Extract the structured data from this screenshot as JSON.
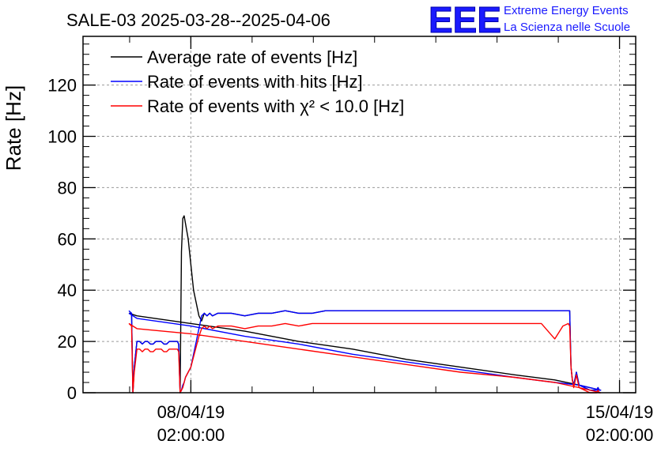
{
  "chart_data": {
    "type": "line",
    "title": "SALE-03 2025-03-28--2025-04-06",
    "xlabel": "",
    "ylabel": "Rate [Hz]",
    "xlim": [
      0,
      205
    ],
    "ylim": [
      0,
      139
    ],
    "yticks": [
      0,
      20,
      40,
      60,
      80,
      100,
      120
    ],
    "xticks": [
      {
        "x": 40,
        "date": "08/04/19",
        "time": "02:00:00"
      },
      {
        "x": 199,
        "date": "15/04/19",
        "time": "02:00:00"
      }
    ],
    "grid": true,
    "legend_position": "top-left",
    "series": [
      {
        "name": "Average rate of events [Hz]",
        "color": "#000000",
        "x": [
          17,
          18,
          18.5,
          19,
          20,
          21,
          22,
          23,
          24,
          25,
          26,
          27,
          28,
          29,
          30,
          31,
          32,
          33,
          34,
          35,
          35.5,
          36,
          36.5,
          37,
          37.5,
          38,
          39,
          40,
          41,
          42,
          43,
          44,
          45,
          46,
          47,
          48,
          50,
          55,
          60,
          65,
          70,
          75,
          80,
          85,
          90,
          95,
          100,
          105,
          110,
          120,
          130,
          140,
          150,
          160,
          170,
          175,
          178,
          180,
          180.5,
          181,
          181.5,
          182,
          183,
          184,
          186,
          188,
          190,
          190.5,
          191,
          191.5,
          192,
          184,
          175,
          160,
          140,
          120,
          100,
          80,
          60,
          40,
          20,
          17
        ],
        "y": [
          31,
          31,
          0,
          10,
          20,
          20,
          19,
          20,
          20,
          19,
          19,
          20,
          20,
          20,
          19,
          19,
          20,
          20,
          20,
          20,
          19,
          0,
          55,
          68,
          69,
          66,
          60,
          50,
          40,
          35,
          30,
          28,
          31,
          30,
          31,
          30,
          31,
          31,
          30,
          31,
          31,
          32,
          31,
          31,
          32,
          32,
          32,
          32,
          32,
          32,
          32,
          32,
          32,
          32,
          32,
          32,
          32,
          32,
          32,
          10,
          5,
          3,
          8,
          3,
          2,
          1,
          1,
          1,
          2,
          1,
          1,
          3,
          5,
          7,
          10,
          13,
          17,
          20,
          24,
          27,
          30,
          31
        ]
      },
      {
        "name": "Rate of events with hits [Hz]",
        "color": "#0000ff",
        "x": [
          17,
          18,
          18.5,
          19,
          20,
          21,
          22,
          23,
          24,
          25,
          26,
          27,
          28,
          29,
          30,
          31,
          32,
          33,
          34,
          35,
          35.5,
          36,
          36.5,
          37,
          37.5,
          38,
          39,
          40,
          41,
          42,
          43,
          44,
          45,
          46,
          47,
          48,
          50,
          55,
          60,
          65,
          70,
          75,
          80,
          85,
          90,
          95,
          100,
          105,
          110,
          120,
          130,
          140,
          150,
          160,
          170,
          175,
          178,
          180,
          180.5,
          181,
          181.5,
          182,
          183,
          184,
          186,
          188,
          190,
          190.5,
          191,
          191.5,
          192,
          184,
          175,
          160,
          140,
          120,
          100,
          80,
          60,
          40,
          20,
          17
        ],
        "y": [
          32,
          31,
          0,
          10,
          20,
          20,
          19,
          20,
          20,
          19,
          19,
          20,
          20,
          20,
          19,
          19,
          20,
          20,
          20,
          20,
          19,
          0,
          1,
          3,
          4,
          6,
          8,
          10,
          15,
          20,
          25,
          30,
          31,
          30,
          31,
          30,
          31,
          31,
          30,
          31,
          31,
          32,
          31,
          31,
          32,
          32,
          32,
          32,
          32,
          32,
          32,
          32,
          32,
          32,
          32,
          32,
          32,
          32,
          32,
          10,
          5,
          3,
          8,
          3,
          2,
          1,
          1,
          1,
          2,
          1,
          1,
          3,
          4,
          6,
          9,
          12,
          15,
          19,
          22,
          26,
          29,
          31
        ]
      },
      {
        "name": "Rate of events with χ² < 10.0 [Hz]",
        "color": "#ff0000",
        "x": [
          17,
          18,
          18.5,
          19,
          20,
          21,
          22,
          23,
          24,
          25,
          26,
          27,
          28,
          29,
          30,
          31,
          32,
          33,
          34,
          35,
          35.5,
          36,
          36.5,
          37,
          37.5,
          38,
          39,
          40,
          41,
          42,
          43,
          44,
          45,
          46,
          47,
          48,
          50,
          55,
          60,
          65,
          70,
          75,
          80,
          85,
          90,
          95,
          100,
          105,
          110,
          120,
          130,
          140,
          150,
          160,
          170,
          175,
          178,
          180,
          180.5,
          181,
          181.5,
          182,
          183,
          184,
          186,
          188,
          190,
          190.5,
          191,
          191.5,
          192,
          184,
          175,
          160,
          140,
          120,
          100,
          80,
          60,
          40,
          20,
          17
        ],
        "y": [
          27,
          26,
          0,
          8,
          17,
          17,
          16,
          17,
          17,
          16,
          16,
          17,
          17,
          17,
          16,
          16,
          17,
          17,
          17,
          17,
          16,
          0,
          1,
          2,
          4,
          6,
          8,
          10,
          14,
          18,
          22,
          25,
          26,
          25,
          26,
          25,
          26,
          26,
          25,
          26,
          26,
          27,
          26,
          27,
          27,
          27,
          27,
          27,
          27,
          27,
          27,
          27,
          27,
          27,
          27,
          21,
          26,
          27,
          26,
          10,
          5,
          2,
          7,
          2,
          1,
          0,
          0,
          0,
          1,
          0,
          0,
          2,
          4,
          6,
          8,
          11,
          14,
          17,
          20,
          23,
          25,
          27
        ]
      }
    ]
  },
  "logo": {
    "mark": "EEE",
    "line1": "Extreme Energy Events",
    "line2": "La Scienza nelle Scuole",
    "color": "#1a1aff"
  }
}
